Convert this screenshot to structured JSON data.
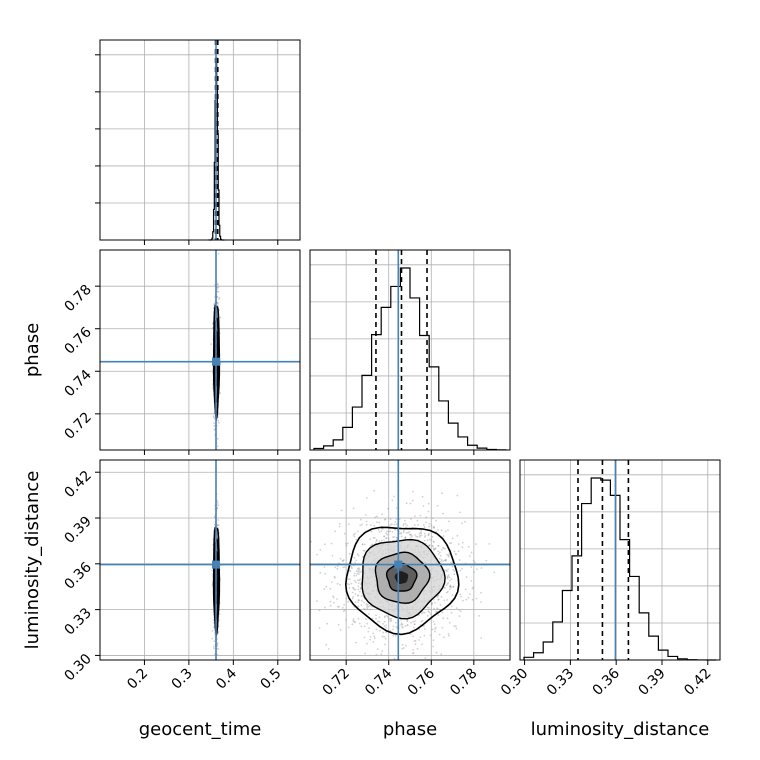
{
  "chart_data": {
    "type": "corner",
    "grid": true,
    "colors": {
      "hist": "#000000",
      "truth": "#4682b4",
      "scatter": "#9a9a9a",
      "grid": "#b0b0b0"
    },
    "parameters": [
      {
        "name": "geocent_time",
        "label": "geocent_time",
        "range": [
          0.1,
          0.55
        ],
        "ticks": [
          0.2,
          0.3,
          0.4,
          0.5
        ],
        "tick_labels": [
          "0.2",
          "0.3",
          "0.4",
          "0.5"
        ],
        "truth": 0.361,
        "mean": 0.362,
        "std": 0.003,
        "quantiles": [
          0.36,
          0.362,
          0.365
        ]
      },
      {
        "name": "phase",
        "label": "phase",
        "range": [
          0.703,
          0.797
        ],
        "ticks": [
          0.72,
          0.74,
          0.76,
          0.78
        ],
        "tick_labels": [
          "0.72",
          "0.74",
          "0.76",
          "0.78"
        ],
        "truth": 0.7445,
        "mean": 0.746,
        "std": 0.0125,
        "quantiles": [
          0.734,
          0.746,
          0.758
        ]
      },
      {
        "name": "luminosity_distance",
        "label": "luminosity_distance",
        "range": [
          0.297,
          0.428
        ],
        "ticks": [
          0.3,
          0.33,
          0.36,
          0.39,
          0.42
        ],
        "tick_labels": [
          "0.30",
          "0.33",
          "0.36",
          "0.39",
          "0.42"
        ],
        "truth": 0.3595,
        "mean": 0.351,
        "std": 0.0165,
        "quantiles": [
          0.335,
          0.351,
          0.368
        ]
      }
    ]
  }
}
